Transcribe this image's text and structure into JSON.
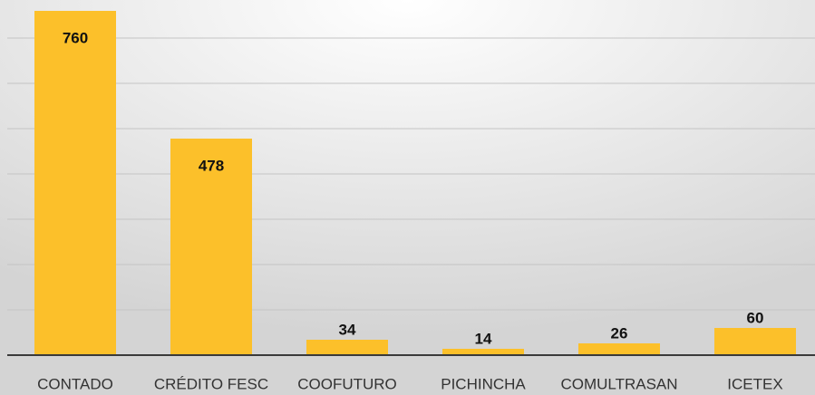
{
  "chart_data": {
    "type": "bar",
    "categories": [
      "CONTADO",
      "CRÉDITO FESC",
      "COOFUTURO",
      "PICHINCHA",
      "COMULTRASAN",
      "ICETEX"
    ],
    "values": [
      760,
      478,
      34,
      14,
      26,
      60
    ],
    "color": "#fcc02a",
    "ylim": [
      0,
      780
    ],
    "yticks": [
      0,
      100,
      200,
      300,
      400,
      500,
      600,
      700
    ],
    "grid": true
  }
}
